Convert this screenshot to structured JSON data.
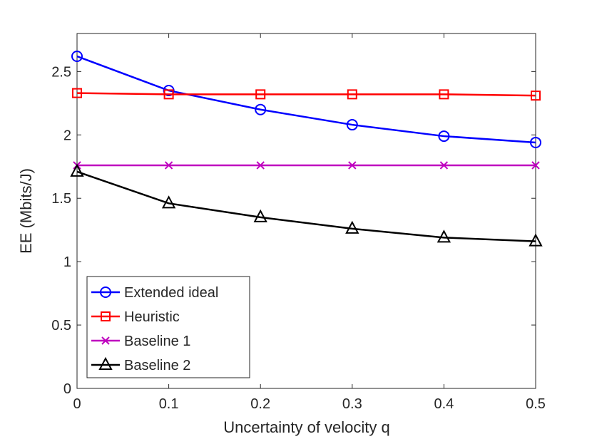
{
  "chart_data": {
    "type": "line",
    "title": "",
    "xlabel": "Uncertainty of velocity q",
    "ylabel": "EE (Mbits/J)",
    "x": [
      0,
      0.1,
      0.2,
      0.3,
      0.4,
      0.5
    ],
    "xlim": [
      0,
      0.5
    ],
    "ylim": [
      0,
      2.8
    ],
    "xticks": [
      "0",
      "0.1",
      "0.2",
      "0.3",
      "0.4",
      "0.5"
    ],
    "xtick_values": [
      0,
      0.1,
      0.2,
      0.3,
      0.4,
      0.5
    ],
    "yticks": [
      "0",
      "0.5",
      "1",
      "1.5",
      "2",
      "2.5"
    ],
    "ytick_values": [
      0,
      0.5,
      1,
      1.5,
      2,
      2.5
    ],
    "grid": false,
    "legend_position": "bottom-left",
    "series": [
      {
        "name": "Extended ideal",
        "color": "#0000ff",
        "marker": "circle",
        "values": [
          2.62,
          2.35,
          2.2,
          2.08,
          1.99,
          1.94
        ]
      },
      {
        "name": "Heuristic",
        "color": "#ff0000",
        "marker": "square",
        "values": [
          2.33,
          2.32,
          2.32,
          2.32,
          2.32,
          2.31
        ]
      },
      {
        "name": "Baseline 1",
        "color": "#bf00bf",
        "marker": "x",
        "values": [
          1.76,
          1.76,
          1.76,
          1.76,
          1.76,
          1.76
        ]
      },
      {
        "name": "Baseline 2",
        "color": "#000000",
        "marker": "triangle",
        "values": [
          1.71,
          1.46,
          1.35,
          1.26,
          1.19,
          1.16
        ]
      }
    ]
  }
}
